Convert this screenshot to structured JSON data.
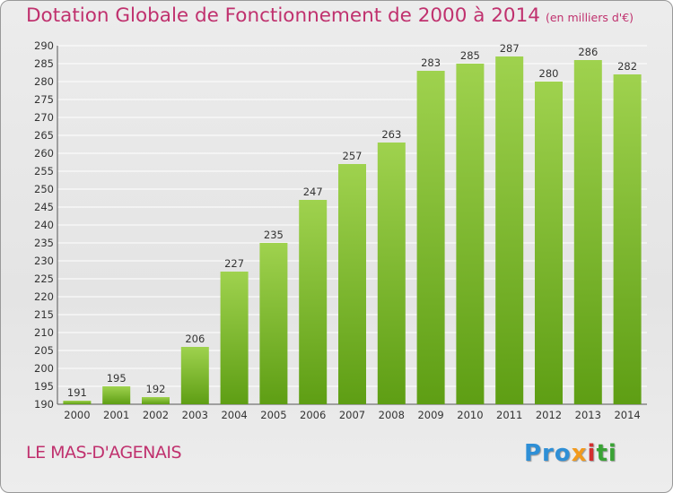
{
  "chart_data": {
    "type": "bar",
    "title": "Dotation Globale de Fonctionnement de 2000 à 2014",
    "subtitle": "(en milliers d'€)",
    "categories": [
      "2000",
      "2001",
      "2002",
      "2003",
      "2004",
      "2005",
      "2006",
      "2007",
      "2008",
      "2009",
      "2010",
      "2011",
      "2012",
      "2013",
      "2014"
    ],
    "values": [
      191,
      195,
      192,
      206,
      227,
      235,
      247,
      257,
      263,
      283,
      285,
      287,
      280,
      286,
      282
    ],
    "ylim": [
      190,
      290
    ],
    "ytick_step": 5,
    "xlabel": "",
    "ylabel": "",
    "grid": true,
    "colors": {
      "bar_top": "#9fd24e",
      "bar_bottom": "#5e9e14",
      "grid": "#ffffff",
      "title": "#c0316e",
      "text": "#333333"
    }
  },
  "footer": {
    "location": "LE MAS-D'AGENAIS",
    "brand_parts": [
      "Pro",
      "x",
      "i",
      "ti"
    ]
  }
}
